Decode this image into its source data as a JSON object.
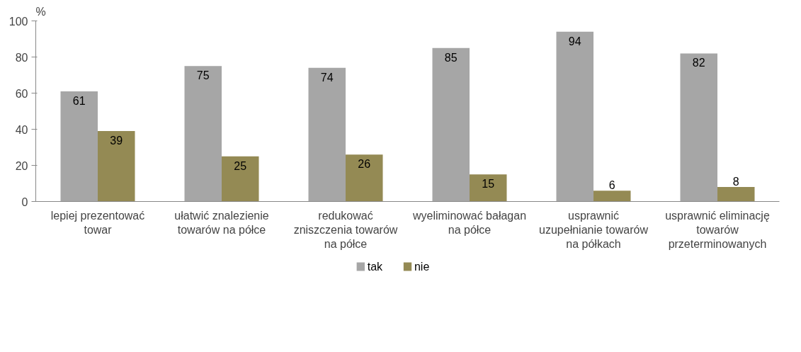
{
  "chart_data": {
    "type": "bar",
    "ylabel": "%",
    "categories": [
      "lepiej prezentować towar",
      "ułatwić znalezienie towarów na półce",
      "redukować zniszczenia towarów na półce",
      "wyeliminować bałagan na półce",
      "usprawnić uzupełnianie towarów na półkach",
      "usprawnić eliminację towarów przeterminowanych"
    ],
    "series": [
      {
        "name": "tak",
        "color": "#a6a6a6",
        "values": [
          61,
          75,
          74,
          85,
          94,
          82
        ]
      },
      {
        "name": "nie",
        "color": "#948a54",
        "values": [
          39,
          25,
          26,
          15,
          6,
          8
        ]
      }
    ],
    "ylim": [
      0,
      100
    ],
    "yticks": [
      0,
      20,
      40,
      60,
      80,
      100
    ],
    "grid": false,
    "legend": "bottom",
    "data_labels": true
  }
}
